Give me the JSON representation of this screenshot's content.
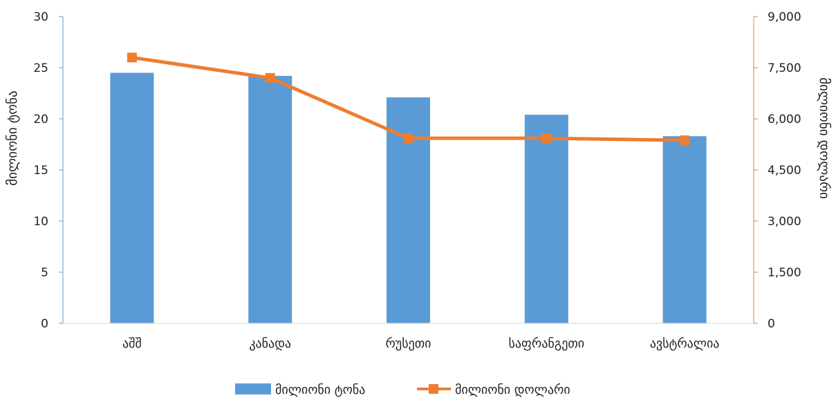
{
  "chart_data": {
    "type": "bar+line",
    "categories": [
      "აშშ",
      "კანადა",
      "რუსეთი",
      "საფრანგეთი",
      "ავსტრალია"
    ],
    "series": [
      {
        "name": "მილიონი ტონა",
        "type": "bar",
        "axis": "left",
        "values": [
          24.5,
          24.2,
          22.1,
          20.4,
          18.3
        ]
      },
      {
        "name": "მილიონი დოლარი",
        "type": "line",
        "axis": "right",
        "values": [
          7800,
          7200,
          5430,
          5430,
          5370
        ]
      }
    ],
    "y_left": {
      "label": "მილიონი ტონა",
      "min": 0,
      "max": 30,
      "ticks": [
        "0",
        "5",
        "10",
        "15",
        "20",
        "25",
        "30"
      ]
    },
    "y_right": {
      "label": "მილიონი დოლარი",
      "min": 0,
      "max": 9000,
      "ticks": [
        "0",
        "1,500",
        "3,000",
        "4,500",
        "6,000",
        "7,500",
        "9,000"
      ]
    },
    "grid": false,
    "legend": "bottom",
    "colors": {
      "bar": "#5b9bd5",
      "line": "#ed7d31",
      "left_axis": "#5b9bd5",
      "right_axis": "#ed7d31"
    }
  }
}
